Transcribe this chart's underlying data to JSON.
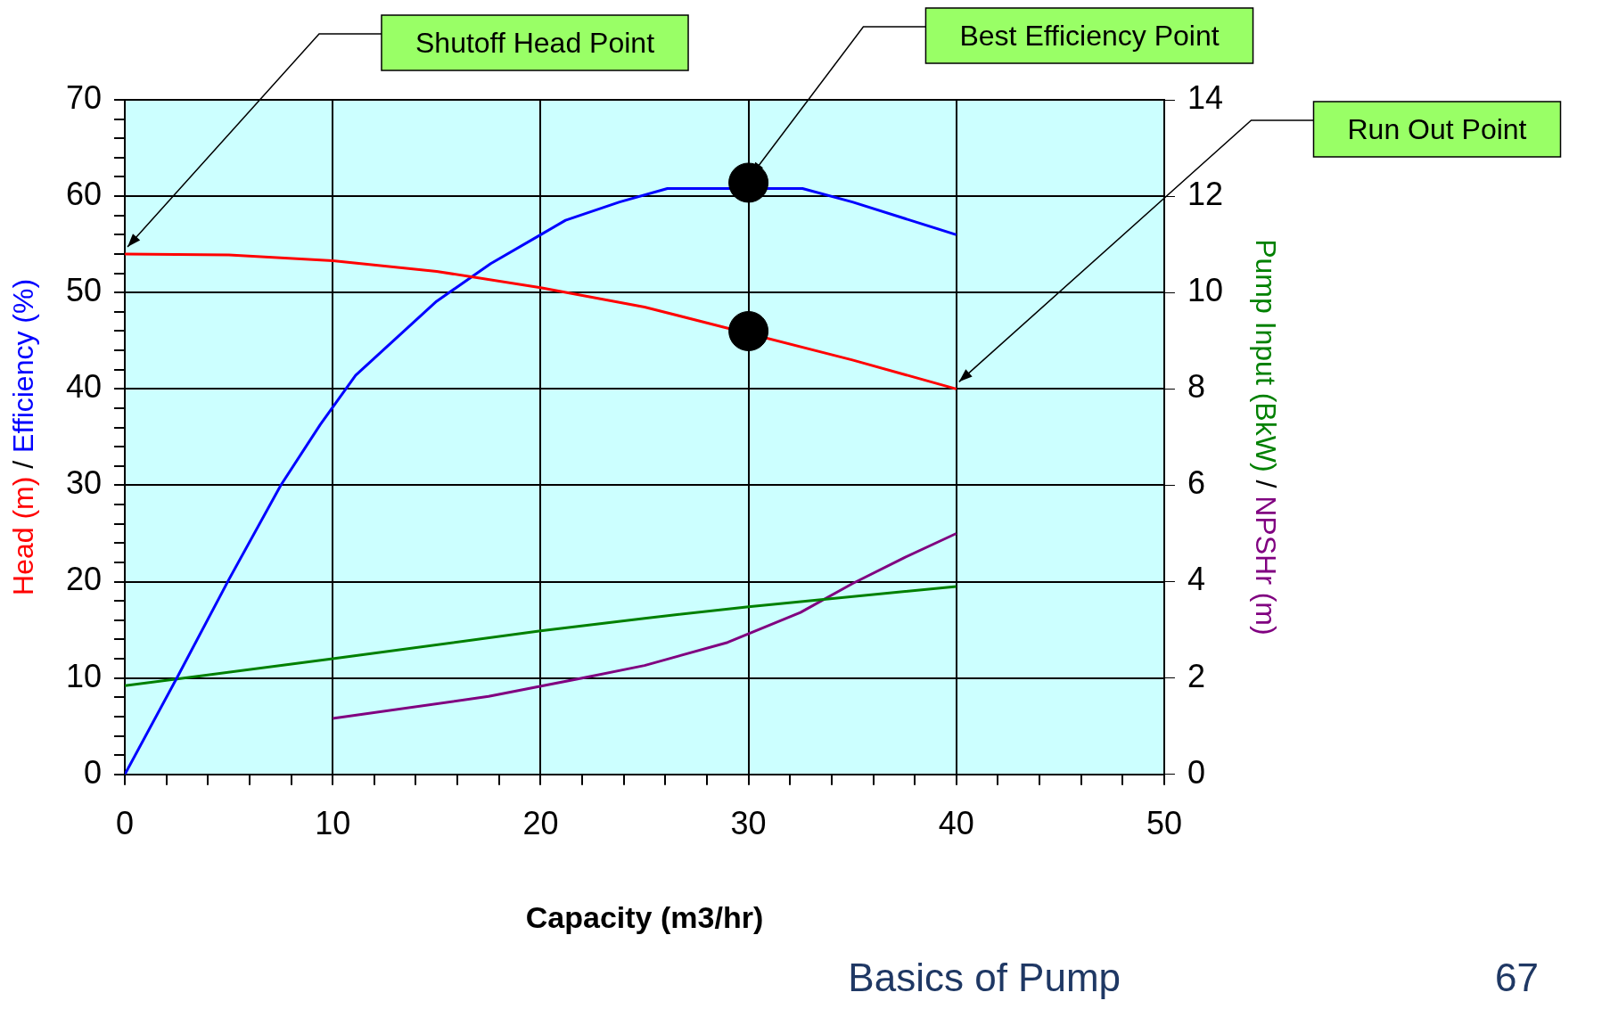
{
  "chart_data": {
    "type": "line",
    "xlabel": "Capacity (m3/hr)",
    "ylabel": "Head (m) / Efficiency (%)",
    "y2label": "Pump Input (BkW) / NPSHr (m)",
    "xlim": [
      0,
      50
    ],
    "xticks": [
      0,
      {
        "value": 2,
        "label": null
      },
      {
        "value": 4,
        "label": null
      },
      {
        "value": 6,
        "label": null
      },
      {
        "value": 8,
        "label": null
      },
      10,
      {
        "value": 12,
        "label": null
      },
      {
        "value": 14,
        "label": null
      },
      {
        "value": 16,
        "label": null
      },
      {
        "value": 18,
        "label": null
      },
      20,
      {
        "value": 22,
        "label": null
      },
      {
        "value": 24,
        "label": null
      },
      {
        "value": 26,
        "label": null
      },
      {
        "value": 28,
        "label": null
      },
      30,
      {
        "value": 32,
        "label": null
      },
      {
        "value": 34,
        "label": null
      },
      {
        "value": 36,
        "label": null
      },
      {
        "value": 38,
        "label": null
      },
      40,
      {
        "value": 42,
        "label": null
      },
      {
        "value": 44,
        "label": null
      },
      {
        "value": 46,
        "label": null
      },
      {
        "value": 48,
        "label": null
      },
      50
    ],
    "ylim": [
      0,
      70
    ],
    "yticks": [
      0,
      {
        "value": 2,
        "label": null
      },
      {
        "value": 4,
        "label": null
      },
      {
        "value": 6,
        "label": null
      },
      {
        "value": 8,
        "label": null
      },
      10,
      {
        "value": 12,
        "label": null
      },
      {
        "value": 14,
        "label": null
      },
      {
        "value": 16,
        "label": null
      },
      {
        "value": 18,
        "label": null
      },
      20,
      {
        "value": 22,
        "label": null
      },
      {
        "value": 24,
        "label": null
      },
      {
        "value": 26,
        "label": null
      },
      {
        "value": 28,
        "label": null
      },
      30,
      {
        "value": 32,
        "label": null
      },
      {
        "value": 34,
        "label": null
      },
      {
        "value": 36,
        "label": null
      },
      {
        "value": 38,
        "label": null
      },
      40,
      {
        "value": 42,
        "label": null
      },
      {
        "value": 44,
        "label": null
      },
      {
        "value": 46,
        "label": null
      },
      {
        "value": 48,
        "label": null
      },
      50,
      {
        "value": 52,
        "label": null
      },
      {
        "value": 54,
        "label": null
      },
      {
        "value": 56,
        "label": null
      },
      {
        "value": 58,
        "label": null
      },
      60,
      {
        "value": 62,
        "label": null
      },
      {
        "value": 64,
        "label": null
      },
      {
        "value": 66,
        "label": null
      },
      {
        "value": 68,
        "label": null
      },
      70
    ],
    "y2lim": [
      0,
      14
    ],
    "y2ticks": [
      0,
      2,
      4,
      6,
      8,
      10,
      12,
      14
    ],
    "grid": true,
    "legend": false,
    "marker": "none",
    "line_style": "solid",
    "series": [
      {
        "color": "#ff0000",
        "x": [
          0,
          5,
          10,
          15,
          20,
          25,
          35,
          40
        ],
        "values": [
          54,
          53.9,
          53.3,
          52.2,
          50.5,
          48.5,
          43,
          40
        ]
      },
      {
        "color": "#0000ff",
        "x": [
          0,
          2.5,
          5,
          7.5,
          9.4,
          11.1,
          15,
          17.6,
          20,
          21.2,
          23.8,
          26.1,
          32.6,
          35,
          37.5,
          40
        ],
        "values": [
          0,
          10,
          20.2,
          30,
          36.3,
          41.4,
          49.1,
          53,
          56,
          57.5,
          59.4,
          60.8,
          60.8,
          59.4,
          57.7,
          56
        ]
      },
      {
        "color": "#008000",
        "axis": "y2",
        "x": [
          0,
          10,
          20,
          25,
          30,
          40
        ],
        "values": [
          1.84,
          2.4,
          2.98,
          3.24,
          3.48,
          3.9
        ]
      },
      {
        "color": "#800080",
        "axis": "y2",
        "x": [
          10,
          17.5,
          22,
          25,
          29,
          32.5,
          35,
          37.5,
          40
        ],
        "values": [
          1.16,
          1.62,
          2.0,
          2.26,
          2.74,
          3.36,
          3.96,
          4.5,
          5.0
        ]
      },
      {
        "type": "scatter",
        "color": "#000000",
        "marker": "circle",
        "x": [
          30,
          30
        ],
        "values": [
          61.4,
          46
        ]
      }
    ],
    "annotations": [
      {
        "text": "Shutoff Head Point",
        "x": 0,
        "y": 54
      },
      {
        "text": "Best Efficiency Point",
        "x": 30,
        "y": 61.4
      },
      {
        "text": "Run Out Point",
        "x": 40,
        "y": 40
      },
      "Basics of Pump",
      "67"
    ]
  }
}
